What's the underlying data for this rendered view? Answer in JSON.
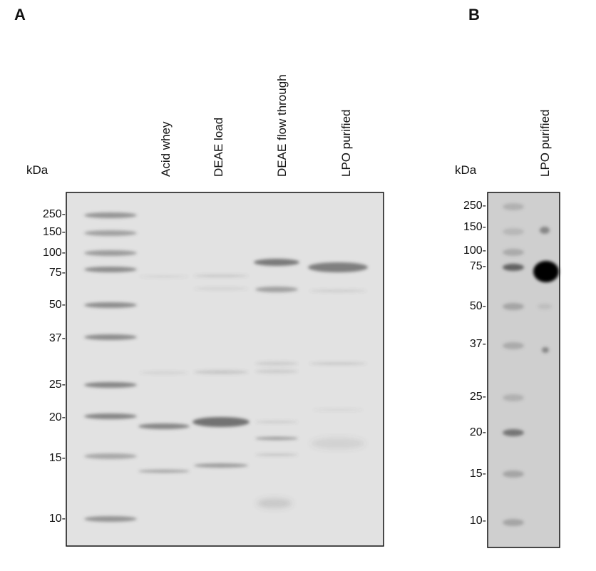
{
  "panel_a": {
    "letter": "A",
    "unit_label": "kDa",
    "lanes": [
      "Acid whey",
      "DEAE load",
      "DEAE flow through",
      "LPO purified"
    ],
    "markers": [
      "250-",
      "150-",
      "100-",
      "75-",
      "50-",
      "37-",
      "25-",
      "20-",
      "15-",
      "10-"
    ]
  },
  "panel_b": {
    "letter": "B",
    "unit_label": "kDa",
    "lanes": [
      "LPO purified"
    ],
    "markers": [
      "250-",
      "150-",
      "100-",
      "75-",
      "50-",
      "37-",
      "25-",
      "20-",
      "15-",
      "10-"
    ]
  },
  "colors": {
    "gel_a_background": "#e2e2e2",
    "blot_b_background": "#cfcfcf",
    "band": "#555555"
  }
}
